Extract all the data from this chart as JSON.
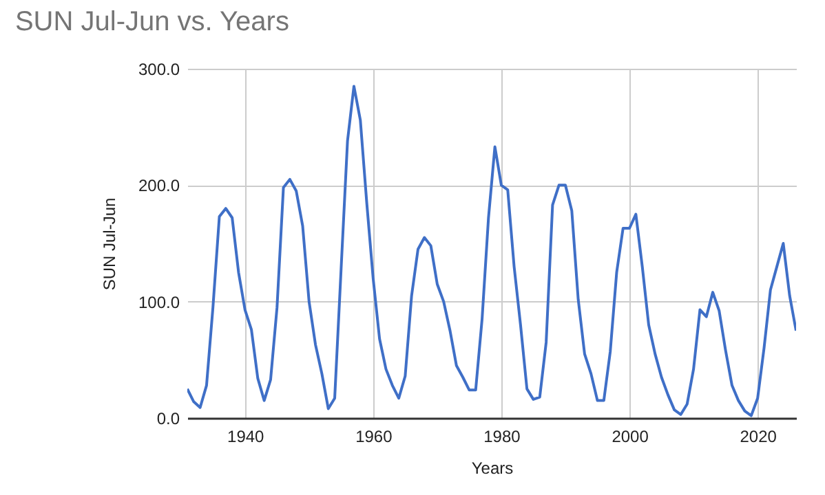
{
  "chart_data": {
    "type": "line",
    "title": "SUN Jul-Jun vs. Years",
    "xlabel": "Years",
    "ylabel": "SUN Jul-Jun",
    "x": [
      1931,
      1932,
      1933,
      1934,
      1935,
      1936,
      1937,
      1938,
      1939,
      1940,
      1941,
      1942,
      1943,
      1944,
      1945,
      1946,
      1947,
      1948,
      1949,
      1950,
      1951,
      1952,
      1953,
      1954,
      1955,
      1956,
      1957,
      1958,
      1959,
      1960,
      1961,
      1962,
      1963,
      1964,
      1965,
      1966,
      1967,
      1968,
      1969,
      1970,
      1971,
      1972,
      1973,
      1974,
      1975,
      1976,
      1977,
      1978,
      1979,
      1980,
      1981,
      1982,
      1983,
      1984,
      1985,
      1986,
      1987,
      1988,
      1989,
      1990,
      1991,
      1992,
      1993,
      1994,
      1995,
      1996,
      1997,
      1998,
      1999,
      2000,
      2001,
      2002,
      2003,
      2004,
      2005,
      2006,
      2007,
      2008,
      2009,
      2010,
      2011,
      2012,
      2013,
      2014,
      2015,
      2016,
      2017,
      2018,
      2019,
      2020,
      2021,
      2022,
      2023,
      2024,
      2025,
      2026
    ],
    "series": [
      {
        "color": "#3f6fc7",
        "values": [
          25,
          14,
          9,
          28,
          95,
          173,
          180,
          172,
          125,
          93,
          76,
          34,
          15,
          33,
          95,
          198,
          205,
          195,
          165,
          100,
          63,
          38,
          8,
          17,
          128,
          238,
          285,
          256,
          185,
          120,
          68,
          42,
          28,
          17,
          36,
          105,
          145,
          155,
          148,
          115,
          100,
          75,
          45,
          35,
          24,
          24,
          85,
          172,
          233,
          200,
          196,
          130,
          80,
          25,
          16,
          18,
          65,
          183,
          200,
          200,
          178,
          102,
          55,
          38,
          15,
          15,
          57,
          125,
          163,
          163,
          175,
          130,
          80,
          55,
          35,
          20,
          7,
          3,
          12,
          42,
          93,
          87,
          108,
          92,
          58,
          28,
          15,
          6,
          2,
          17,
          60,
          110,
          130,
          150,
          105,
          75
        ]
      }
    ],
    "xlim": [
      1931,
      2026
    ],
    "xticks": [
      1940,
      1960,
      1980,
      2000,
      2020
    ],
    "ylim": [
      0,
      300
    ],
    "yticks": [
      {
        "value": 0,
        "label": "0.0"
      },
      {
        "value": 100,
        "label": "100.0"
      },
      {
        "value": 200,
        "label": "200.0"
      },
      {
        "value": 300,
        "label": "300.0"
      }
    ],
    "grid": true
  }
}
